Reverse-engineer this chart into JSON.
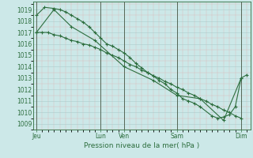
{
  "background_color": "#cce8e8",
  "grid_color": "#aacccc",
  "line_color": "#2d6e3e",
  "xlabel": "Pression niveau de la mer( hPa )",
  "ylim": [
    1008.5,
    1019.7
  ],
  "yticks": [
    1009,
    1010,
    1011,
    1012,
    1013,
    1014,
    1015,
    1016,
    1017,
    1018,
    1019
  ],
  "xtick_labels": [
    "Jeu",
    "Lun",
    "Ven",
    "Sam",
    "Dim"
  ],
  "xtick_positions": [
    0,
    5.5,
    7.5,
    12,
    17.5
  ],
  "series1_x": [
    0,
    0.5,
    1,
    1.5,
    2,
    2.5,
    3,
    3.5,
    4,
    4.5,
    5,
    5.5,
    6,
    6.5,
    7,
    7.5,
    8,
    8.5,
    9,
    9.5,
    10,
    10.5,
    11,
    11.5,
    12,
    12.5,
    13,
    13.5,
    14,
    14.5,
    15,
    15.5,
    16,
    16.5,
    17,
    17.5
  ],
  "series1_y": [
    1017.0,
    1017.0,
    1017.0,
    1016.8,
    1016.7,
    1016.5,
    1016.3,
    1016.2,
    1016.0,
    1015.9,
    1015.7,
    1015.5,
    1015.2,
    1015.0,
    1014.8,
    1014.5,
    1014.2,
    1014.0,
    1013.7,
    1013.5,
    1013.2,
    1013.0,
    1012.7,
    1012.5,
    1012.2,
    1012.0,
    1011.7,
    1011.5,
    1011.2,
    1011.0,
    1010.7,
    1010.5,
    1010.2,
    1010.0,
    1009.7,
    1009.5
  ],
  "series2_x": [
    0,
    0.7,
    1.5,
    2,
    2.5,
    3,
    3.5,
    4,
    4.5,
    5,
    5.5,
    6,
    6.5,
    7,
    7.5,
    8,
    8.5,
    9,
    9.5,
    10,
    10.5,
    11,
    11.5,
    12,
    12.5,
    13,
    13.5,
    14,
    15,
    15.5,
    16,
    16.5,
    17,
    17.5,
    18
  ],
  "series2_y": [
    1018.5,
    1019.2,
    1019.1,
    1019.0,
    1018.8,
    1018.5,
    1018.2,
    1017.9,
    1017.5,
    1017.0,
    1016.5,
    1016.0,
    1015.8,
    1015.5,
    1015.2,
    1014.8,
    1014.3,
    1013.9,
    1013.5,
    1013.2,
    1012.8,
    1012.5,
    1012.0,
    1011.7,
    1011.2,
    1011.0,
    1010.8,
    1010.5,
    1009.7,
    1009.5,
    1009.6,
    1009.8,
    1010.5,
    1013.0,
    1013.3
  ],
  "series3_x": [
    0,
    1.5,
    3,
    5,
    7.5,
    10,
    12,
    14,
    16,
    17.5
  ],
  "series3_y": [
    1017.0,
    1019.0,
    1017.5,
    1016.3,
    1014.0,
    1012.8,
    1011.5,
    1011.2,
    1009.3,
    1013.0
  ],
  "vline_positions": [
    0,
    5.5,
    7.5,
    12,
    17.5
  ],
  "vline_color": "#556655"
}
